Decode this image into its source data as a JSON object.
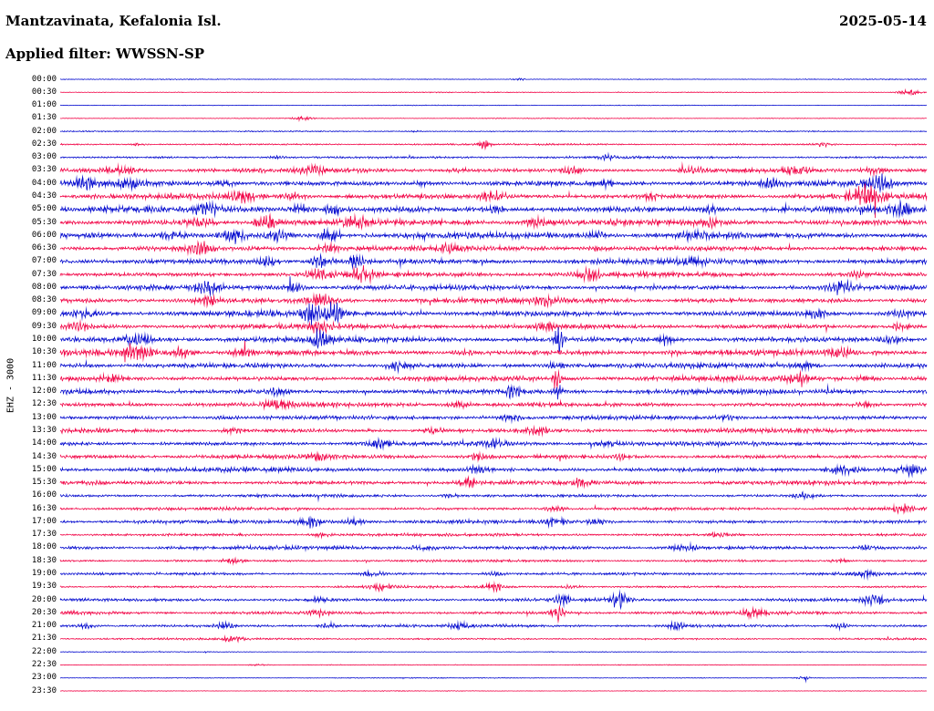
{
  "header": {
    "station": "Mantzavinata, Kefalonia Isl.",
    "date": "2025-05-14",
    "filter": "Applied filter: WWSSN-SP"
  },
  "axis": {
    "y_label": "EHZ - 3000"
  },
  "chart_data": {
    "type": "line",
    "title": "24-hour helicorder seismogram, Mantzavinata, Kefalonia Isl., 2025-05-14, channel EHZ, filter WWSSN-SP",
    "minutes_per_row": 30,
    "row_start": "00:00",
    "row_end": "23:30",
    "trace_colors": {
      "even_rows": "#0a10d0",
      "odd_rows": "#f2094a"
    },
    "amplitude_note": "a = baseline noise amplitude (px half-height, estimated from pixels); b = bursts as [position 0..1 along row, extra amplitude px, gaussian width]",
    "rows": [
      {
        "t": "00:00",
        "a": 0.4,
        "b": [
          [
            0.53,
            2.2,
            0.008
          ]
        ]
      },
      {
        "t": "00:30",
        "a": 0.4,
        "b": [
          [
            0.98,
            3.5,
            0.012
          ]
        ]
      },
      {
        "t": "01:00",
        "a": 0.35,
        "b": []
      },
      {
        "t": "01:30",
        "a": 0.4,
        "b": [
          [
            0.28,
            2.2,
            0.01
          ]
        ]
      },
      {
        "t": "02:00",
        "a": 0.6,
        "b": [
          [
            0.41,
            1.2,
            0.008
          ]
        ]
      },
      {
        "t": "02:30",
        "a": 0.8,
        "b": [
          [
            0.09,
            1.8,
            0.008
          ],
          [
            0.49,
            3.5,
            0.006
          ],
          [
            0.88,
            2.5,
            0.01
          ]
        ]
      },
      {
        "t": "03:00",
        "a": 1.1,
        "b": [
          [
            0.25,
            1.5,
            0.012
          ],
          [
            0.63,
            1.8,
            0.01
          ]
        ]
      },
      {
        "t": "03:30",
        "a": 2.0,
        "b": [
          [
            0.07,
            2.5,
            0.02
          ],
          [
            0.29,
            3.5,
            0.012
          ],
          [
            0.46,
            2.5,
            0.012
          ],
          [
            0.59,
            3.5,
            0.012
          ],
          [
            0.73,
            2.5,
            0.012
          ],
          [
            0.85,
            3.5,
            0.015
          ],
          [
            0.94,
            5,
            0.012
          ]
        ]
      },
      {
        "t": "04:00",
        "a": 2.3,
        "b": [
          [
            0.03,
            4,
            0.012
          ],
          [
            0.08,
            3.5,
            0.015
          ],
          [
            0.19,
            3.5,
            0.012
          ],
          [
            0.42,
            2.5,
            0.012
          ],
          [
            0.63,
            2.5,
            0.012
          ],
          [
            0.82,
            2.5,
            0.012
          ],
          [
            0.945,
            7,
            0.015
          ]
        ]
      },
      {
        "t": "04:30",
        "a": 2.3,
        "b": [
          [
            0.21,
            4.5,
            0.012
          ],
          [
            0.27,
            3.5,
            0.012
          ],
          [
            0.5,
            5,
            0.012
          ],
          [
            0.68,
            2.5,
            0.012
          ],
          [
            0.93,
            8,
            0.018
          ]
        ]
      },
      {
        "t": "05:00",
        "a": 2.7,
        "b": [
          [
            0.17,
            5,
            0.012
          ],
          [
            0.28,
            7,
            0.012
          ],
          [
            0.315,
            9,
            0.008
          ],
          [
            0.5,
            3.5,
            0.012
          ],
          [
            0.75,
            3.5,
            0.012
          ],
          [
            0.97,
            4.5,
            0.012
          ]
        ]
      },
      {
        "t": "05:30",
        "a": 2.7,
        "b": [
          [
            0.16,
            4.5,
            0.015
          ],
          [
            0.24,
            8,
            0.015
          ],
          [
            0.34,
            7,
            0.012
          ],
          [
            0.55,
            5,
            0.012
          ],
          [
            0.75,
            3,
            0.012
          ]
        ]
      },
      {
        "t": "06:00",
        "a": 2.7,
        "b": [
          [
            0.13,
            4.5,
            0.015
          ],
          [
            0.2,
            7,
            0.012
          ],
          [
            0.25,
            5.5,
            0.012
          ],
          [
            0.31,
            10,
            0.01
          ],
          [
            0.62,
            3.5,
            0.012
          ],
          [
            0.73,
            3.5,
            0.012
          ]
        ]
      },
      {
        "t": "06:30",
        "a": 2.3,
        "b": [
          [
            0.16,
            7,
            0.015
          ],
          [
            0.31,
            5,
            0.012
          ],
          [
            0.45,
            2.5,
            0.012
          ],
          [
            0.62,
            2.5,
            0.012
          ]
        ]
      },
      {
        "t": "07:00",
        "a": 2.5,
        "b": [
          [
            0.24,
            5,
            0.012
          ],
          [
            0.3,
            9,
            0.012
          ],
          [
            0.34,
            7,
            0.01
          ],
          [
            0.73,
            2.5,
            0.012
          ]
        ]
      },
      {
        "t": "07:30",
        "a": 2.3,
        "b": [
          [
            0.3,
            5,
            0.015
          ],
          [
            0.35,
            7,
            0.012
          ],
          [
            0.61,
            5.5,
            0.012
          ],
          [
            0.92,
            2.5,
            0.012
          ]
        ]
      },
      {
        "t": "08:00",
        "a": 2.3,
        "b": [
          [
            0.17,
            5,
            0.012
          ],
          [
            0.27,
            4.5,
            0.012
          ],
          [
            0.9,
            6,
            0.015
          ]
        ]
      },
      {
        "t": "08:30",
        "a": 2.3,
        "b": [
          [
            0.17,
            4.5,
            0.012
          ],
          [
            0.3,
            7,
            0.015
          ],
          [
            0.56,
            2.5,
            0.012
          ]
        ]
      },
      {
        "t": "09:00",
        "a": 2.5,
        "b": [
          [
            0.03,
            3.5,
            0.012
          ],
          [
            0.29,
            7,
            0.012
          ],
          [
            0.315,
            9,
            0.008
          ],
          [
            0.87,
            4.5,
            0.012
          ],
          [
            0.97,
            3.5,
            0.012
          ]
        ]
      },
      {
        "t": "09:30",
        "a": 2.3,
        "b": [
          [
            0.02,
            5,
            0.012
          ],
          [
            0.3,
            3.5,
            0.012
          ],
          [
            0.56,
            2.5,
            0.012
          ],
          [
            0.97,
            3.5,
            0.012
          ]
        ]
      },
      {
        "t": "10:00",
        "a": 2.5,
        "b": [
          [
            0.09,
            4.5,
            0.015
          ],
          [
            0.3,
            8,
            0.01
          ],
          [
            0.575,
            13,
            0.005
          ],
          [
            0.7,
            3.5,
            0.012
          ],
          [
            0.96,
            5,
            0.012
          ]
        ]
      },
      {
        "t": "10:30",
        "a": 2.5,
        "b": [
          [
            0.09,
            5,
            0.015
          ],
          [
            0.14,
            5,
            0.012
          ],
          [
            0.21,
            4.5,
            0.012
          ],
          [
            0.47,
            3.5,
            0.012
          ],
          [
            0.9,
            3.5,
            0.012
          ]
        ]
      },
      {
        "t": "11:00",
        "a": 2.3,
        "b": [
          [
            0.39,
            4.5,
            0.015
          ],
          [
            0.57,
            3.5,
            0.012
          ],
          [
            0.86,
            3.5,
            0.012
          ]
        ]
      },
      {
        "t": "11:30",
        "a": 2.3,
        "b": [
          [
            0.06,
            3.5,
            0.012
          ],
          [
            0.573,
            15,
            0.004
          ],
          [
            0.85,
            4.5,
            0.012
          ],
          [
            0.93,
            3.5,
            0.012
          ]
        ]
      },
      {
        "t": "12:00",
        "a": 2.3,
        "b": [
          [
            0.25,
            3.5,
            0.012
          ],
          [
            0.52,
            4.5,
            0.012
          ],
          [
            0.575,
            7,
            0.005
          ]
        ]
      },
      {
        "t": "12:30",
        "a": 2.0,
        "b": [
          [
            0.25,
            3.5,
            0.015
          ],
          [
            0.46,
            4.5,
            0.012
          ],
          [
            0.93,
            3.5,
            0.012
          ]
        ]
      },
      {
        "t": "13:00",
        "a": 1.9,
        "b": [
          [
            0.19,
            2.5,
            0.012
          ],
          [
            0.52,
            3.5,
            0.012
          ],
          [
            0.77,
            2.5,
            0.012
          ]
        ]
      },
      {
        "t": "13:30",
        "a": 1.9,
        "b": [
          [
            0.2,
            2.5,
            0.012
          ],
          [
            0.43,
            3.5,
            0.012
          ],
          [
            0.55,
            3.5,
            0.012
          ]
        ]
      },
      {
        "t": "14:00",
        "a": 2.0,
        "b": [
          [
            0.37,
            5,
            0.012
          ],
          [
            0.5,
            3.5,
            0.012
          ],
          [
            0.63,
            3.5,
            0.012
          ]
        ]
      },
      {
        "t": "14:30",
        "a": 1.9,
        "b": [
          [
            0.3,
            2.5,
            0.012
          ],
          [
            0.48,
            3.5,
            0.012
          ],
          [
            0.65,
            2.5,
            0.012
          ]
        ]
      },
      {
        "t": "15:00",
        "a": 2.0,
        "b": [
          [
            0.48,
            3.5,
            0.012
          ],
          [
            0.9,
            6,
            0.015
          ],
          [
            0.98,
            3.5,
            0.012
          ]
        ]
      },
      {
        "t": "15:30",
        "a": 1.9,
        "b": [
          [
            0.47,
            4.5,
            0.01
          ],
          [
            0.6,
            2.5,
            0.012
          ]
        ]
      },
      {
        "t": "16:00",
        "a": 1.4,
        "b": [
          [
            0.45,
            2.5,
            0.012
          ],
          [
            0.86,
            3.5,
            0.012
          ]
        ]
      },
      {
        "t": "16:30",
        "a": 1.4,
        "b": [
          [
            0.57,
            3.5,
            0.012
          ],
          [
            0.97,
            2.5,
            0.012
          ]
        ]
      },
      {
        "t": "17:00",
        "a": 1.7,
        "b": [
          [
            0.29,
            5,
            0.012
          ],
          [
            0.34,
            4.5,
            0.012
          ],
          [
            0.57,
            3.5,
            0.012
          ],
          [
            0.62,
            3.5,
            0.012
          ]
        ]
      },
      {
        "t": "17:30",
        "a": 1.3,
        "b": [
          [
            0.3,
            2.5,
            0.012
          ],
          [
            0.76,
            2.5,
            0.012
          ]
        ]
      },
      {
        "t": "18:00",
        "a": 1.7,
        "b": [
          [
            0.42,
            4.5,
            0.015
          ],
          [
            0.72,
            3.5,
            0.015
          ],
          [
            0.93,
            2.5,
            0.012
          ]
        ]
      },
      {
        "t": "18:30",
        "a": 1.1,
        "b": [
          [
            0.2,
            1.8,
            0.012
          ],
          [
            0.9,
            2.5,
            0.012
          ]
        ]
      },
      {
        "t": "19:00",
        "a": 1.3,
        "b": [
          [
            0.36,
            2.5,
            0.012
          ],
          [
            0.5,
            2.5,
            0.012
          ],
          [
            0.93,
            2.5,
            0.012
          ]
        ]
      },
      {
        "t": "19:30",
        "a": 1.1,
        "b": [
          [
            0.37,
            2.5,
            0.012
          ],
          [
            0.5,
            3.5,
            0.01
          ],
          [
            0.59,
            2.5,
            0.01
          ]
        ]
      },
      {
        "t": "20:00",
        "a": 1.5,
        "b": [
          [
            0.3,
            2.5,
            0.012
          ],
          [
            0.58,
            3.5,
            0.01
          ],
          [
            0.645,
            7,
            0.01
          ],
          [
            0.94,
            6,
            0.012
          ]
        ]
      },
      {
        "t": "20:30",
        "a": 1.5,
        "b": [
          [
            0.3,
            2.5,
            0.012
          ],
          [
            0.575,
            8,
            0.008
          ],
          [
            0.8,
            3.5,
            0.012
          ]
        ]
      },
      {
        "t": "21:00",
        "a": 1.3,
        "b": [
          [
            0.03,
            2.5,
            0.01
          ],
          [
            0.19,
            3.5,
            0.01
          ],
          [
            0.31,
            3.5,
            0.01
          ],
          [
            0.46,
            2.5,
            0.01
          ],
          [
            0.71,
            3.5,
            0.01
          ],
          [
            0.9,
            3.5,
            0.01
          ]
        ]
      },
      {
        "t": "21:30",
        "a": 0.9,
        "b": [
          [
            0.2,
            1.8,
            0.012
          ]
        ]
      },
      {
        "t": "22:00",
        "a": 0.4,
        "b": []
      },
      {
        "t": "22:30",
        "a": 0.4,
        "b": [
          [
            0.23,
            1.8,
            0.01
          ]
        ]
      },
      {
        "t": "23:00",
        "a": 0.4,
        "b": [
          [
            0.86,
            2.5,
            0.01
          ]
        ]
      },
      {
        "t": "23:30",
        "a": 0.35,
        "b": []
      }
    ]
  }
}
